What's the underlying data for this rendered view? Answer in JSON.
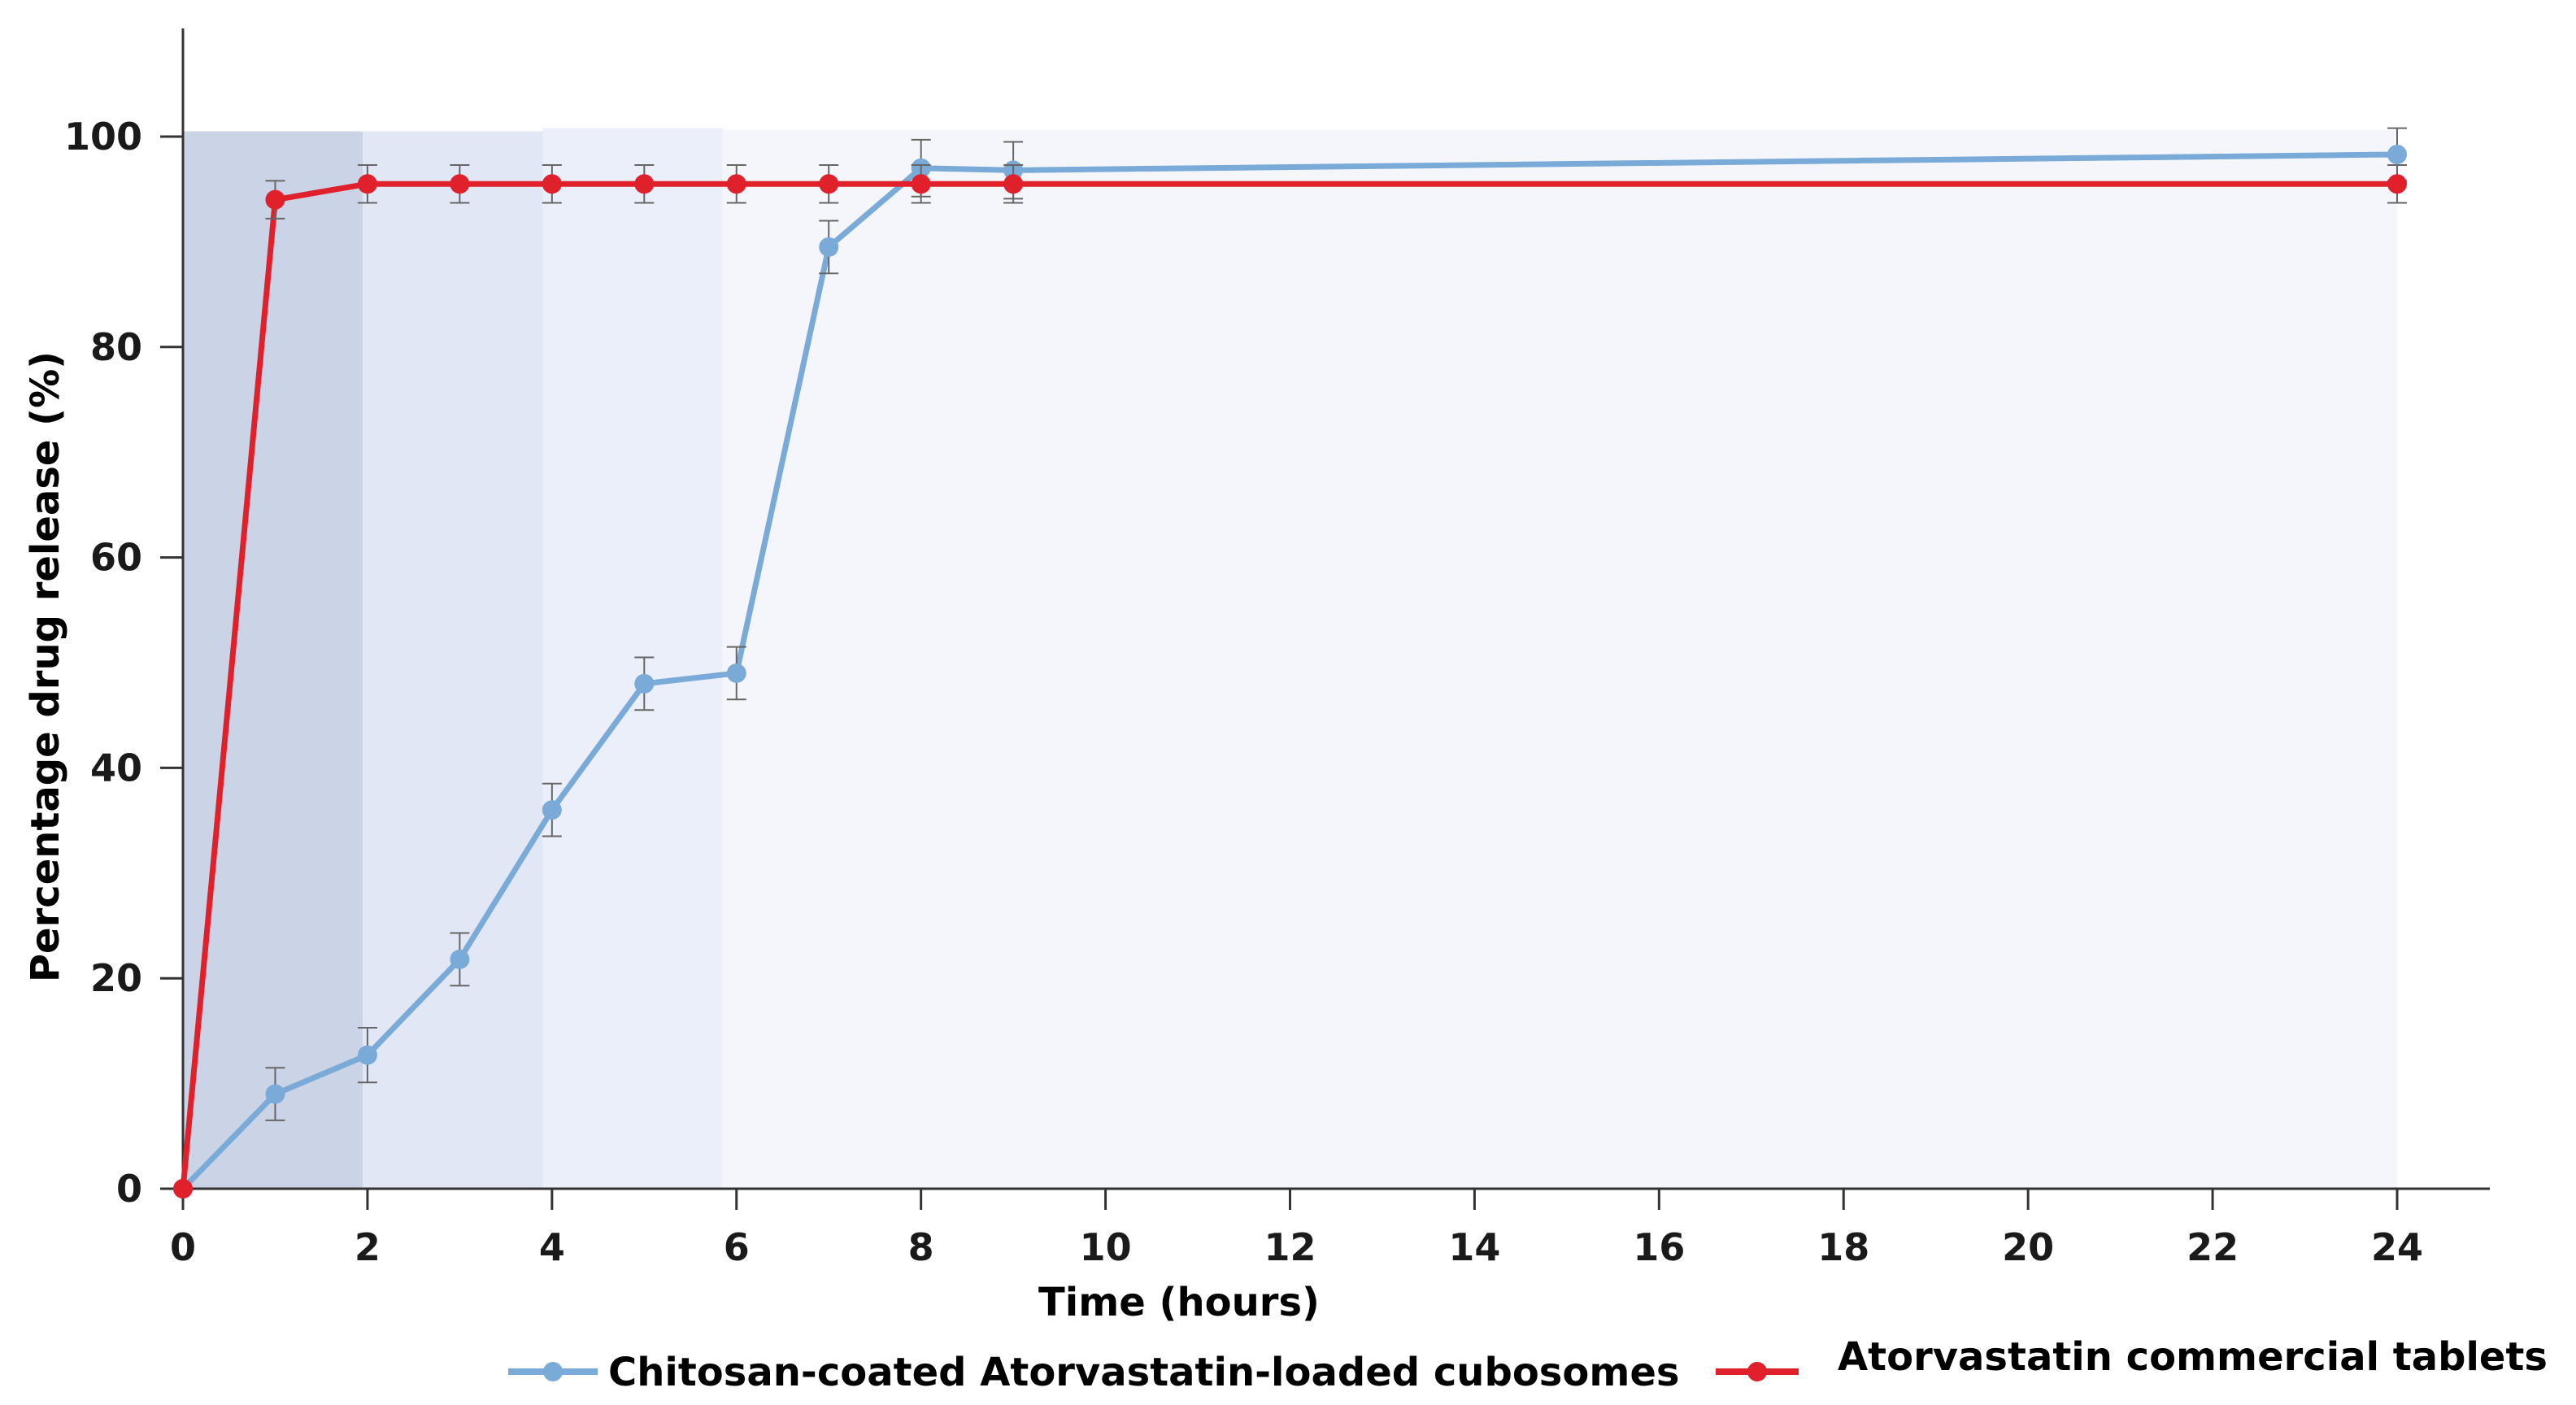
{
  "chart_data": {
    "type": "line",
    "xlabel": "Time (hours)",
    "ylabel": "Percentage drug release (%)",
    "xlim": [
      0,
      24
    ],
    "ylim": [
      0,
      110
    ],
    "x_ticks": [
      0,
      2,
      4,
      6,
      8,
      10,
      12,
      14,
      16,
      18,
      20,
      22,
      24
    ],
    "y_ticks": [
      0,
      20,
      40,
      60,
      80,
      100
    ],
    "grid": false,
    "shaded_bands": [
      {
        "x_from": 0,
        "x_to": 1.95,
        "y_to": 100.5,
        "color": "#cbd4e6"
      },
      {
        "x_from": 1.95,
        "x_to": 3.9,
        "y_to": 100.5,
        "color": "#e1e7f5"
      },
      {
        "x_from": 3.9,
        "x_to": 5.85,
        "y_to": 100.8,
        "color": "#ebeff9"
      },
      {
        "x_from": 5.85,
        "x_to": 24,
        "y_to": 100.6,
        "color": "#f4f6fc"
      }
    ],
    "series": [
      {
        "name": "Chitosan-coated Atorvastatin-loaded cubosomes",
        "color": "#7aaad8",
        "x": [
          0,
          1,
          2,
          3,
          4,
          5,
          6,
          7,
          8,
          9,
          24
        ],
        "y": [
          0,
          9,
          12.7,
          21.8,
          36,
          48,
          49,
          89.5,
          97,
          96.8,
          98.3
        ],
        "err": [
          0,
          2.5,
          2.6,
          2.5,
          2.5,
          2.5,
          2.5,
          2.5,
          2.7,
          2.7,
          2.5
        ]
      },
      {
        "name": "Atorvastatin commercial tablets",
        "color": "#e0202a",
        "x": [
          0,
          1,
          2,
          3,
          4,
          5,
          6,
          7,
          8,
          9,
          24
        ],
        "y": [
          0,
          94,
          95.5,
          95.5,
          95.5,
          95.5,
          95.5,
          95.5,
          95.5,
          95.5,
          95.5
        ],
        "err": [
          0,
          1.8,
          1.8,
          1.8,
          1.8,
          1.8,
          1.8,
          1.8,
          1.8,
          1.8,
          1.8
        ]
      }
    ],
    "legend_position": "bottom"
  }
}
